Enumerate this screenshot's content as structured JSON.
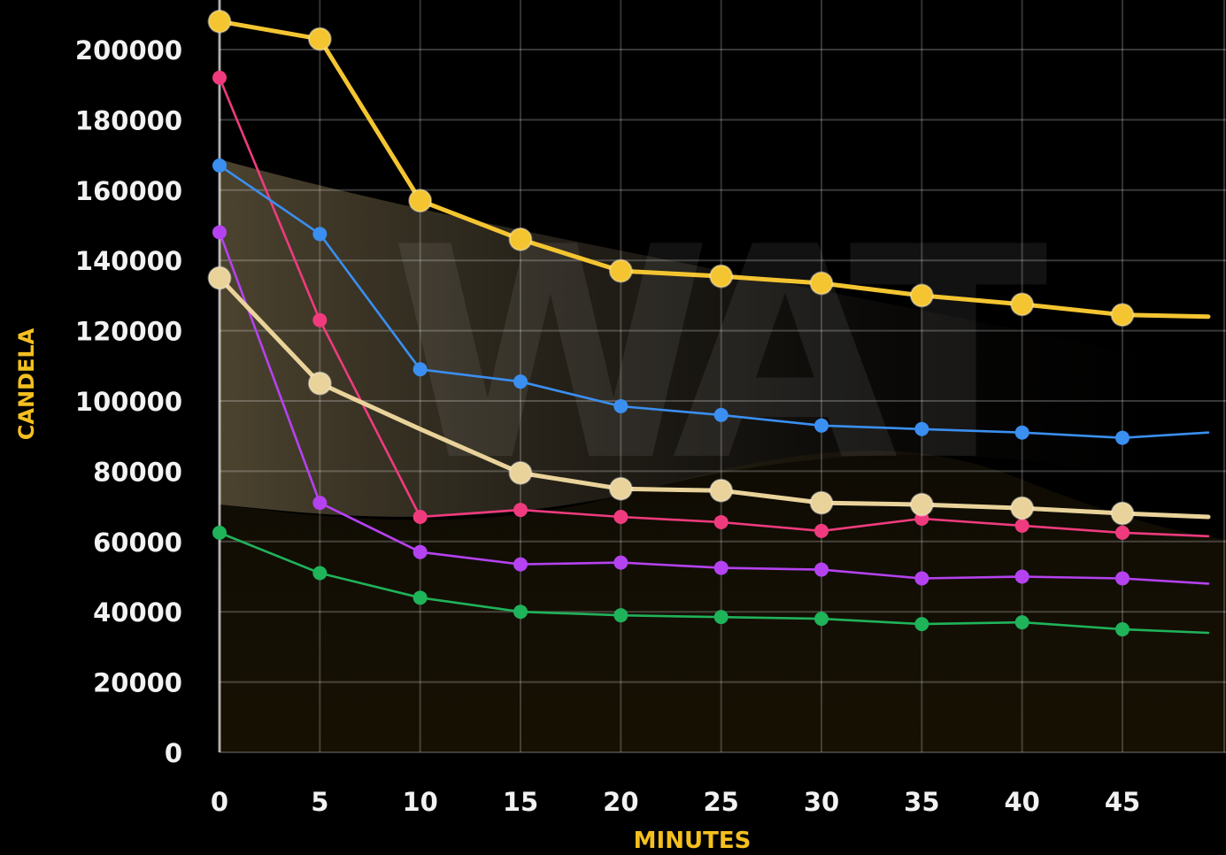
{
  "chart_data": {
    "type": "line",
    "title": "",
    "xlabel": "MINUTES",
    "ylabel": "CANDELA",
    "x": [
      0,
      5,
      10,
      15,
      20,
      25,
      30,
      35,
      40,
      45
    ],
    "xlim": [
      -2.6,
      48
    ],
    "ylim": [
      0,
      200000
    ],
    "y_ticks": [
      "0",
      "20000",
      "40000",
      "60000",
      "80000",
      "100000",
      "120000",
      "140000",
      "160000",
      "180000",
      "200000"
    ],
    "x_ticks": [
      "0",
      "5",
      "10",
      "15",
      "20",
      "25",
      "30",
      "35",
      "40",
      "45"
    ],
    "grid": true,
    "legend": "none",
    "watermark": "WAT",
    "series": [
      {
        "values": [
          62500,
          51000,
          44000,
          40000,
          39000,
          38500,
          38000,
          36500,
          37000,
          35000
        ],
        "trail": 34000,
        "color": "#1fb35a",
        "style": "small"
      },
      {
        "values": [
          148000,
          71000,
          57000,
          53500,
          54000,
          52500,
          52000,
          49500,
          50000,
          49500
        ],
        "trail": 48000,
        "color": "#b542f0",
        "style": "small"
      },
      {
        "values": [
          192000,
          123000,
          67000,
          69000,
          67000,
          65500,
          63000,
          66500,
          64500,
          62500
        ],
        "trail": 61500,
        "color": "#ef3b7e",
        "style": "small"
      },
      {
        "values": [
          167000,
          147500,
          109000,
          105500,
          98500,
          96000,
          93000,
          92000,
          91000,
          89500
        ],
        "trail": 91000,
        "color": "#3a8ff0",
        "style": "small"
      },
      {
        "values": [
          135000,
          105000,
          92000,
          79500,
          75000,
          74500,
          71000,
          70500,
          69500,
          68000
        ],
        "trail": 67000,
        "color": "#e9d39a",
        "style": "large",
        "markers_skip": [
          2
        ]
      },
      {
        "values": [
          208000,
          203000,
          157000,
          146000,
          137000,
          135500,
          133500,
          130000,
          127500,
          124500
        ],
        "trail": 124000,
        "color": "#f4c531",
        "style": "large"
      }
    ]
  }
}
